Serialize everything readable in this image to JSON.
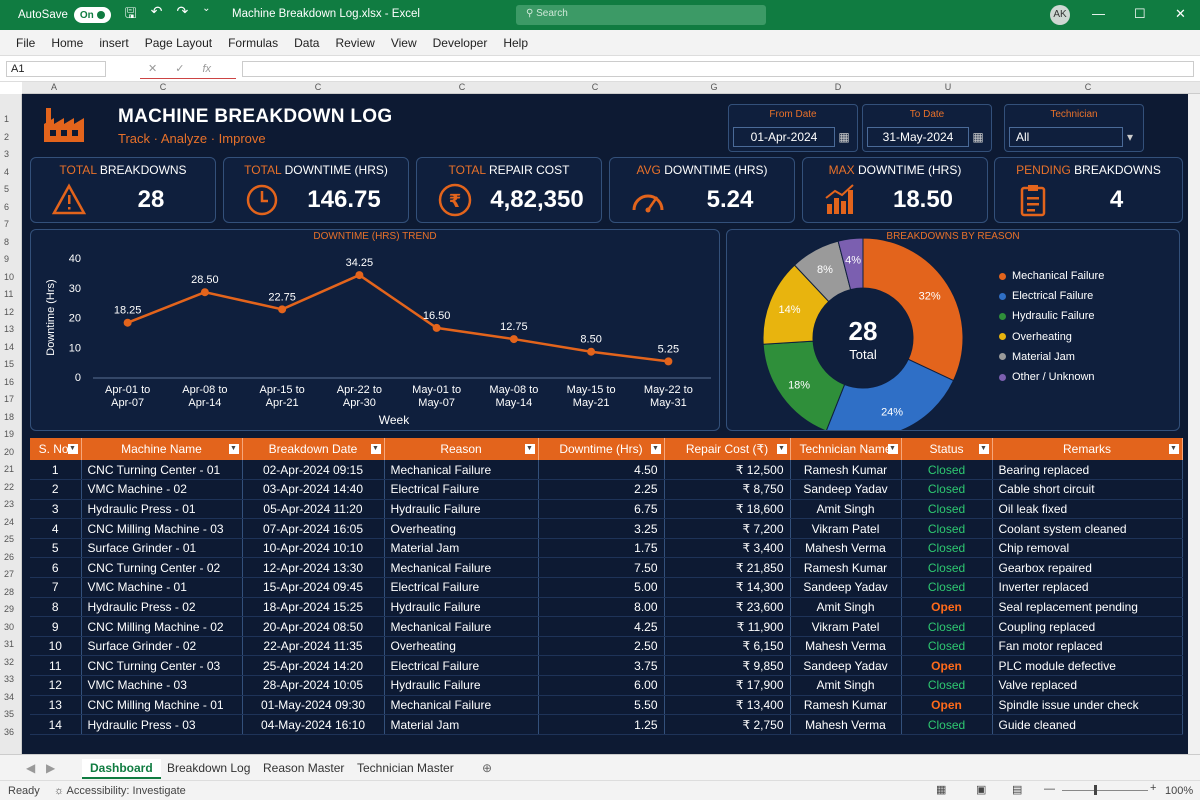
{
  "app": {
    "autosave_label": "AutoSave",
    "autosave_state": "On",
    "file_title": "Machine Breakdown Log.xlsx  -  Excel",
    "search_placeholder": "Search",
    "user_initials": "AK"
  },
  "menu": [
    "File",
    "Home",
    "insert",
    "Page Layout",
    "Formulas",
    "Data",
    "Review",
    "View",
    "Developer",
    "Help"
  ],
  "formula": {
    "cell_ref": "A1"
  },
  "columns": [
    "A",
    "C",
    "C",
    "C",
    "C",
    "G",
    "D",
    "U",
    "C"
  ],
  "rows": [
    "1",
    "2",
    "3",
    "4",
    "5",
    "6",
    "7",
    "8",
    "9",
    "10",
    "11",
    "12",
    "13",
    "14",
    "15",
    "16",
    "17",
    "18",
    "19",
    "20",
    "21",
    "22",
    "23",
    "24",
    "25",
    "26",
    "27",
    "28",
    "29",
    "30",
    "31",
    "32",
    "33",
    "34",
    "35",
    "36",
    "37"
  ],
  "header": {
    "title": "MACHINE BREAKDOWN LOG",
    "subtitle": "Track · Analyze · Improve"
  },
  "filters": {
    "from_label": "From Date",
    "from_value": "01-Apr-2024",
    "to_label": "To Date",
    "to_value": "31-May-2024",
    "tech_label": "Technician",
    "tech_value": "All"
  },
  "kpis": [
    {
      "label_accent": "TOTAL",
      "label_rest": " BREAKDOWNS",
      "value": "28",
      "icon": "warning-icon"
    },
    {
      "label_accent": "TOTAL",
      "label_rest": " DOWNTIME (HRS)",
      "value": "146.75",
      "icon": "clock-icon"
    },
    {
      "label_accent": "TOTAL",
      "label_rest": " REPAIR COST",
      "value": "4,82,350",
      "icon": "rupee-icon"
    },
    {
      "label_accent": "AVG",
      "label_rest": " DOWNTIME (HRS)",
      "value": "5.24",
      "icon": "gauge-icon"
    },
    {
      "label_accent": "MAX",
      "label_rest": " DOWNTIME (HRS)",
      "value": "18.50",
      "icon": "bar-chart-icon"
    },
    {
      "label_accent": "PENDING",
      "label_rest": " BREAKDOWNS",
      "value": "4",
      "icon": "clipboard-icon"
    }
  ],
  "colors": {
    "accent": "#e3641c",
    "bg": "#0d1a33",
    "closed": "#2ec971",
    "open": "#ff6a1a"
  },
  "chart_data": [
    {
      "type": "line",
      "title": "DOWNTIME (HRS) TREND",
      "xlabel": "Week",
      "ylabel": "Downtime (Hrs)",
      "ylim": [
        0,
        40
      ],
      "yticks": [
        "0",
        "10",
        "20",
        "30",
        "40"
      ],
      "categories": [
        [
          "Apr-01 to",
          "Apr-07"
        ],
        [
          "Apr-08 to",
          "Apr-14"
        ],
        [
          "Apr-15 to",
          "Apr-21"
        ],
        [
          "Apr-22 to",
          "Apr-30"
        ],
        [
          "May-01 to",
          "May-07"
        ],
        [
          "May-08 to",
          "May-14"
        ],
        [
          "May-15 to",
          "May-21"
        ],
        [
          "May-22 to",
          "May-31"
        ]
      ],
      "values": [
        18.25,
        28.5,
        22.75,
        34.25,
        16.5,
        12.75,
        8.5,
        5.25
      ],
      "labels": [
        "18.25",
        "28.50",
        "22.75",
        "34.25",
        "16.50",
        "12.75",
        "8.50",
        "5.25"
      ]
    },
    {
      "type": "pie",
      "title": "BREAKDOWNS BY REASON",
      "center_value": "28",
      "center_label": "Total",
      "slices": [
        {
          "name": "Mechanical Failure",
          "value": 32,
          "label": "32%",
          "color": "#e3641c"
        },
        {
          "name": "Electrical Failure",
          "value": 24,
          "label": "24%",
          "color": "#2f6fc6"
        },
        {
          "name": "Hydraulic Failure",
          "value": 18,
          "label": "18%",
          "color": "#2f8f3a"
        },
        {
          "name": "Overheating",
          "value": 14,
          "label": "14%",
          "color": "#e8b40e"
        },
        {
          "name": "Material Jam",
          "value": 8,
          "label": "8%",
          "color": "#9a9a9a"
        },
        {
          "name": "Other / Unknown",
          "value": 4,
          "label": "4%",
          "color": "#7b5fb0"
        }
      ]
    }
  ],
  "table": {
    "headers": [
      "S. No.",
      "Machine Name",
      "Breakdown Date",
      "Reason",
      "Downtime (Hrs)",
      "Repair Cost (₹)",
      "Technician Name",
      "Status",
      "Remarks"
    ],
    "currency": "₹",
    "rows": [
      [
        "1",
        "CNC Turning Center - 01",
        "02-Apr-2024 09:15",
        "Mechanical Failure",
        "4.50",
        "₹ 12,500",
        "Ramesh Kumar",
        "Closed",
        "Bearing replaced"
      ],
      [
        "2",
        "VMC Machine - 02",
        "03-Apr-2024 14:40",
        "Electrical Failure",
        "2.25",
        "₹ 8,750",
        "Sandeep Yadav",
        "Closed",
        "Cable short circuit"
      ],
      [
        "3",
        "Hydraulic Press - 01",
        "05-Apr-2024 11:20",
        "Hydraulic Failure",
        "6.75",
        "₹ 18,600",
        "Amit Singh",
        "Closed",
        "Oil leak fixed"
      ],
      [
        "4",
        "CNC Milling Machine - 03",
        "07-Apr-2024 16:05",
        "Overheating",
        "3.25",
        "₹ 7,200",
        "Vikram Patel",
        "Closed",
        "Coolant system cleaned"
      ],
      [
        "5",
        "Surface Grinder - 01",
        "10-Apr-2024 10:10",
        "Material Jam",
        "1.75",
        "₹ 3,400",
        "Mahesh Verma",
        "Closed",
        "Chip removal"
      ],
      [
        "6",
        "CNC Turning Center - 02",
        "12-Apr-2024 13:30",
        "Mechanical Failure",
        "7.50",
        "₹ 21,850",
        "Ramesh Kumar",
        "Closed",
        "Gearbox repaired"
      ],
      [
        "7",
        "VMC Machine - 01",
        "15-Apr-2024 09:45",
        "Electrical Failure",
        "5.00",
        "₹ 14,300",
        "Sandeep Yadav",
        "Closed",
        "Inverter replaced"
      ],
      [
        "8",
        "Hydraulic Press - 02",
        "18-Apr-2024 15:25",
        "Hydraulic Failure",
        "8.00",
        "₹ 23,600",
        "Amit Singh",
        "Open",
        "Seal replacement pending"
      ],
      [
        "9",
        "CNC Milling Machine - 02",
        "20-Apr-2024 08:50",
        "Mechanical Failure",
        "4.25",
        "₹ 11,900",
        "Vikram Patel",
        "Closed",
        "Coupling replaced"
      ],
      [
        "10",
        "Surface Grinder - 02",
        "22-Apr-2024 11:35",
        "Overheating",
        "2.50",
        "₹ 6,150",
        "Mahesh Verma",
        "Closed",
        "Fan motor replaced"
      ],
      [
        "11",
        "CNC Turning Center - 03",
        "25-Apr-2024 14:20",
        "Electrical Failure",
        "3.75",
        "₹ 9,850",
        "Sandeep Yadav",
        "Open",
        "PLC module defective"
      ],
      [
        "12",
        "VMC Machine - 03",
        "28-Apr-2024 10:05",
        "Hydraulic Failure",
        "6.00",
        "₹ 17,900",
        "Amit Singh",
        "Closed",
        "Valve replaced"
      ],
      [
        "13",
        "CNC Milling Machine - 01",
        "01-May-2024 09:30",
        "Mechanical Failure",
        "5.50",
        "₹ 13,400",
        "Ramesh Kumar",
        "Open",
        "Spindle issue under check"
      ],
      [
        "14",
        "Hydraulic Press - 03",
        "04-May-2024 16:10",
        "Material Jam",
        "1.25",
        "₹ 2,750",
        "Mahesh Verma",
        "Closed",
        "Guide cleaned"
      ]
    ]
  },
  "sheet_tabs": [
    "Dashboard",
    "Breakdown Log",
    "Reason Master",
    "Technician Master"
  ],
  "status": {
    "ready": "Ready",
    "accessibility": "Accessibility: Investigate",
    "zoom": "100%"
  }
}
